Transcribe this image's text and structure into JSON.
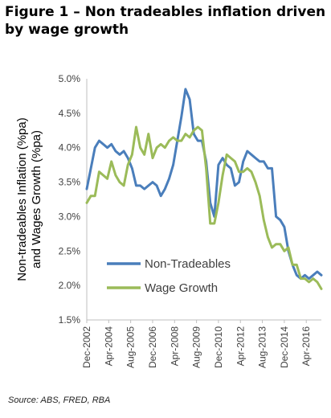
{
  "header": {
    "title": "Figure 1 – Non tradeables inflation driven by wage growth"
  },
  "footer": {
    "source": "Source: ABS, FRED, RBA"
  },
  "chart_data": {
    "type": "line",
    "ylabel_lines": [
      "Non-tradeables Inflation (%pa)",
      "and Wages Growth (%pa)"
    ],
    "ylim": [
      1.5,
      5.0
    ],
    "yticks": [
      1.5,
      2.0,
      2.5,
      3.0,
      3.5,
      4.0,
      4.5,
      5.0
    ],
    "ytick_labels": [
      "1.5%",
      "2.0%",
      "2.5%",
      "3.0%",
      "3.5%",
      "4.0%",
      "4.5%",
      "5.0%"
    ],
    "x_start": "Dec-2002",
    "x_end": "Mar-2017",
    "xtick_labels": [
      "Dec-2002",
      "Apr-2004",
      "Aug-2005",
      "Dec-2006",
      "Apr-2008",
      "Aug-2009",
      "Dec-2010",
      "Apr-2012",
      "Aug-2013",
      "Dec-2014",
      "Apr-2016"
    ],
    "grid": false,
    "legend_position": "bottom-left",
    "series": [
      {
        "name": "Non-Tradeables",
        "color": "#4a7ebb",
        "x": [
          "Dec-2002",
          "Mar-2003",
          "Jun-2003",
          "Sep-2003",
          "Dec-2003",
          "Mar-2004",
          "Jun-2004",
          "Sep-2004",
          "Dec-2004",
          "Mar-2005",
          "Jun-2005",
          "Sep-2005",
          "Dec-2005",
          "Mar-2006",
          "Jun-2006",
          "Sep-2006",
          "Dec-2006",
          "Mar-2007",
          "Jun-2007",
          "Sep-2007",
          "Dec-2007",
          "Mar-2008",
          "Jun-2008",
          "Sep-2008",
          "Dec-2008",
          "Mar-2009",
          "Jun-2009",
          "Sep-2009",
          "Dec-2009",
          "Mar-2010",
          "Jun-2010",
          "Sep-2010",
          "Dec-2010",
          "Mar-2011",
          "Jun-2011",
          "Sep-2011",
          "Dec-2011",
          "Mar-2012",
          "Jun-2012",
          "Sep-2012",
          "Dec-2012",
          "Mar-2013",
          "Jun-2013",
          "Sep-2013",
          "Dec-2013",
          "Mar-2014",
          "Jun-2014",
          "Sep-2014",
          "Dec-2014",
          "Mar-2015",
          "Jun-2015",
          "Sep-2015",
          "Dec-2015",
          "Mar-2016",
          "Jun-2016",
          "Sep-2016",
          "Dec-2016",
          "Mar-2017"
        ],
        "y": [
          3.4,
          3.7,
          4.0,
          4.1,
          4.05,
          4.0,
          4.05,
          3.95,
          3.9,
          3.95,
          3.85,
          3.7,
          3.45,
          3.45,
          3.4,
          3.45,
          3.5,
          3.45,
          3.3,
          3.4,
          3.55,
          3.75,
          4.1,
          4.45,
          4.85,
          4.7,
          4.2,
          4.1,
          4.1,
          3.8,
          3.2,
          3.0,
          3.75,
          3.85,
          3.75,
          3.7,
          3.45,
          3.5,
          3.8,
          3.95,
          3.9,
          3.85,
          3.8,
          3.8,
          3.7,
          3.7,
          3.0,
          2.95,
          2.85,
          2.5,
          2.3,
          2.15,
          2.1,
          2.15,
          2.1,
          2.15,
          2.2,
          2.15
        ]
      },
      {
        "name": "Wage Growth",
        "color": "#9bbb59",
        "x": [
          "Dec-2002",
          "Mar-2003",
          "Jun-2003",
          "Sep-2003",
          "Dec-2003",
          "Mar-2004",
          "Jun-2004",
          "Sep-2004",
          "Dec-2004",
          "Mar-2005",
          "Jun-2005",
          "Sep-2005",
          "Dec-2005",
          "Mar-2006",
          "Jun-2006",
          "Sep-2006",
          "Dec-2006",
          "Mar-2007",
          "Jun-2007",
          "Sep-2007",
          "Dec-2007",
          "Mar-2008",
          "Jun-2008",
          "Sep-2008",
          "Dec-2008",
          "Mar-2009",
          "Jun-2009",
          "Sep-2009",
          "Dec-2009",
          "Mar-2010",
          "Jun-2010",
          "Sep-2010",
          "Dec-2010",
          "Mar-2011",
          "Jun-2011",
          "Sep-2011",
          "Dec-2011",
          "Mar-2012",
          "Jun-2012",
          "Sep-2012",
          "Dec-2012",
          "Mar-2013",
          "Jun-2013",
          "Sep-2013",
          "Dec-2013",
          "Mar-2014",
          "Jun-2014",
          "Sep-2014",
          "Dec-2014",
          "Mar-2015",
          "Jun-2015",
          "Sep-2015",
          "Dec-2015",
          "Mar-2016",
          "Jun-2016",
          "Sep-2016",
          "Dec-2016",
          "Mar-2017"
        ],
        "y": [
          3.2,
          3.3,
          3.3,
          3.65,
          3.6,
          3.55,
          3.8,
          3.6,
          3.5,
          3.45,
          3.75,
          3.9,
          4.3,
          4.0,
          3.9,
          4.2,
          3.85,
          4.0,
          4.05,
          4.0,
          4.1,
          4.15,
          4.1,
          4.1,
          4.2,
          4.15,
          4.25,
          4.3,
          4.25,
          3.7,
          2.9,
          2.9,
          3.2,
          3.6,
          3.9,
          3.85,
          3.8,
          3.65,
          3.65,
          3.7,
          3.65,
          3.5,
          3.3,
          2.95,
          2.7,
          2.55,
          2.6,
          2.6,
          2.5,
          2.55,
          2.3,
          2.3,
          2.1,
          2.1,
          2.05,
          2.1,
          2.05,
          1.95
        ]
      }
    ]
  }
}
